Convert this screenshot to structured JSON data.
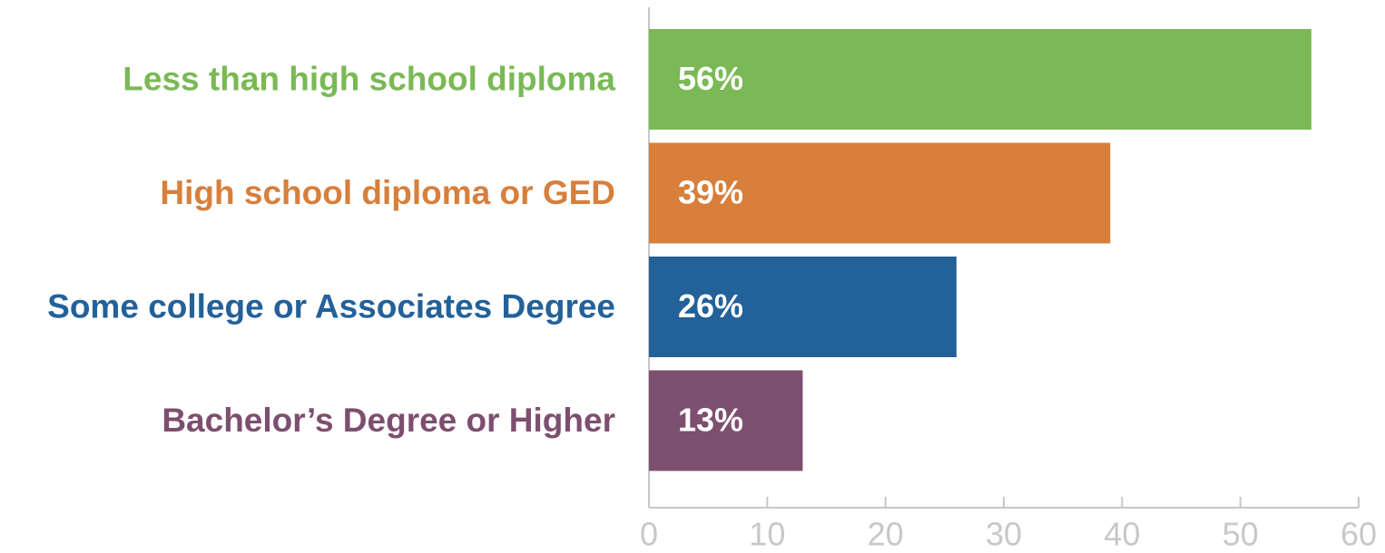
{
  "chart_data": {
    "type": "bar",
    "orientation": "horizontal",
    "categories": [
      "Less than high school diploma",
      "High school diploma or GED",
      "Some college or Associates Degree",
      "Bachelor’s Degree or Higher"
    ],
    "values": [
      56,
      39,
      26,
      13
    ],
    "value_labels": [
      "56%",
      "39%",
      "26%",
      "13%"
    ],
    "colors": [
      "#7ab955",
      "#d77f3b",
      "#236199",
      "#7d4f6f"
    ],
    "xlim": [
      0,
      60
    ],
    "xticks": [
      0,
      10,
      20,
      30,
      40,
      50,
      60
    ]
  }
}
